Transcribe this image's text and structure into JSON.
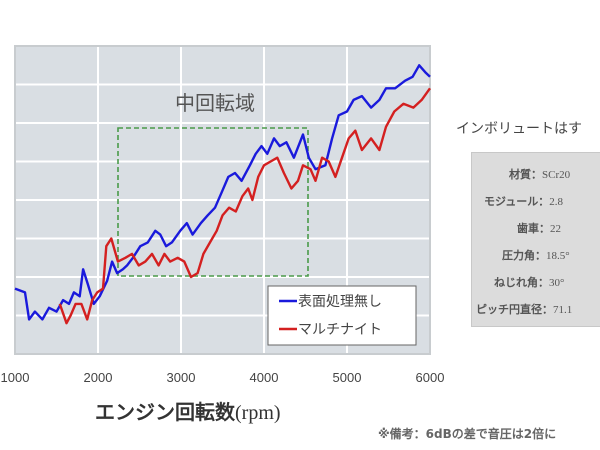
{
  "chart_data": {
    "type": "line",
    "title": "中回転域",
    "xlabel": "エンジン回転数(rpm)",
    "ylabel": "",
    "xlim": [
      1000,
      6000
    ],
    "ylim": [
      0,
      8
    ],
    "x_ticks": [
      1000,
      2000,
      3000,
      4000,
      5000,
      6000
    ],
    "y_ticks_labeled": false,
    "y_gridlines": [
      1,
      2,
      3,
      4,
      5,
      6,
      7
    ],
    "grid": true,
    "background": "#d9dee3",
    "legend_position": "lower right",
    "annotations": [
      {
        "type": "dashed-box",
        "label": "中回転域",
        "x_range": [
          2250,
          4550
        ],
        "y_range": [
          2.0,
          5.9
        ],
        "color": "#4a9a4a"
      }
    ],
    "series": [
      {
        "name": "表面処理無し",
        "color": "#1a1adc",
        "points": [
          [
            1000,
            1.7
          ],
          [
            1120,
            1.6
          ],
          [
            1170,
            0.9
          ],
          [
            1240,
            1.1
          ],
          [
            1330,
            0.9
          ],
          [
            1410,
            1.2
          ],
          [
            1500,
            1.1
          ],
          [
            1580,
            1.4
          ],
          [
            1650,
            1.3
          ],
          [
            1710,
            1.6
          ],
          [
            1780,
            1.5
          ],
          [
            1820,
            2.2
          ],
          [
            1880,
            1.8
          ],
          [
            1950,
            1.3
          ],
          [
            2020,
            1.5
          ],
          [
            2110,
            1.9
          ],
          [
            2170,
            2.4
          ],
          [
            2230,
            2.1
          ],
          [
            2300,
            2.2
          ],
          [
            2350,
            2.3
          ],
          [
            2420,
            2.5
          ],
          [
            2510,
            2.8
          ],
          [
            2600,
            2.9
          ],
          [
            2690,
            3.2
          ],
          [
            2750,
            3.1
          ],
          [
            2820,
            2.8
          ],
          [
            2890,
            2.9
          ],
          [
            2990,
            3.2
          ],
          [
            3070,
            3.4
          ],
          [
            3140,
            3.1
          ],
          [
            3240,
            3.4
          ],
          [
            3320,
            3.6
          ],
          [
            3410,
            3.8
          ],
          [
            3490,
            4.2
          ],
          [
            3570,
            4.6
          ],
          [
            3650,
            4.7
          ],
          [
            3730,
            4.5
          ],
          [
            3830,
            4.9
          ],
          [
            3900,
            5.2
          ],
          [
            3970,
            5.4
          ],
          [
            4040,
            5.2
          ],
          [
            4120,
            5.6
          ],
          [
            4190,
            5.4
          ],
          [
            4270,
            5.5
          ],
          [
            4360,
            5.1
          ],
          [
            4470,
            5.7
          ],
          [
            4540,
            5.1
          ],
          [
            4620,
            4.8
          ],
          [
            4740,
            4.9
          ],
          [
            4820,
            5.6
          ],
          [
            4900,
            6.2
          ],
          [
            5000,
            6.3
          ],
          [
            5080,
            6.6
          ],
          [
            5180,
            6.7
          ],
          [
            5290,
            6.4
          ],
          [
            5390,
            6.6
          ],
          [
            5470,
            6.9
          ],
          [
            5580,
            6.9
          ],
          [
            5700,
            7.1
          ],
          [
            5790,
            7.2
          ],
          [
            5870,
            7.5
          ],
          [
            5950,
            7.3
          ],
          [
            6000,
            7.2
          ]
        ]
      },
      {
        "name": "マルチナイト",
        "color": "#d42020",
        "points": [
          [
            1540,
            1.3
          ],
          [
            1620,
            0.8
          ],
          [
            1670,
            1.0
          ],
          [
            1730,
            1.3
          ],
          [
            1800,
            1.3
          ],
          [
            1870,
            0.9
          ],
          [
            1930,
            1.4
          ],
          [
            1990,
            1.6
          ],
          [
            2060,
            1.7
          ],
          [
            2100,
            2.8
          ],
          [
            2160,
            3.0
          ],
          [
            2240,
            2.4
          ],
          [
            2330,
            2.5
          ],
          [
            2410,
            2.6
          ],
          [
            2490,
            2.3
          ],
          [
            2570,
            2.4
          ],
          [
            2650,
            2.6
          ],
          [
            2730,
            2.3
          ],
          [
            2800,
            2.6
          ],
          [
            2870,
            2.4
          ],
          [
            2960,
            2.5
          ],
          [
            3040,
            2.4
          ],
          [
            3120,
            2.0
          ],
          [
            3200,
            2.1
          ],
          [
            3270,
            2.6
          ],
          [
            3350,
            2.9
          ],
          [
            3430,
            3.2
          ],
          [
            3500,
            3.6
          ],
          [
            3580,
            3.8
          ],
          [
            3660,
            3.7
          ],
          [
            3740,
            4.1
          ],
          [
            3810,
            4.3
          ],
          [
            3860,
            4.0
          ],
          [
            3930,
            4.6
          ],
          [
            4000,
            4.9
          ],
          [
            4080,
            5.0
          ],
          [
            4160,
            5.1
          ],
          [
            4240,
            4.7
          ],
          [
            4330,
            4.3
          ],
          [
            4410,
            4.5
          ],
          [
            4470,
            4.9
          ],
          [
            4560,
            4.8
          ],
          [
            4620,
            4.5
          ],
          [
            4700,
            5.1
          ],
          [
            4780,
            5.0
          ],
          [
            4860,
            4.6
          ],
          [
            4940,
            5.1
          ],
          [
            5020,
            5.6
          ],
          [
            5100,
            5.8
          ],
          [
            5180,
            5.3
          ],
          [
            5290,
            5.6
          ],
          [
            5390,
            5.3
          ],
          [
            5470,
            5.9
          ],
          [
            5570,
            6.3
          ],
          [
            5680,
            6.5
          ],
          [
            5800,
            6.4
          ],
          [
            5900,
            6.6
          ],
          [
            6000,
            6.9
          ]
        ]
      }
    ]
  },
  "axis": {
    "x_ticks": [
      "1000",
      "2000",
      "3000",
      "4000",
      "5000",
      "6000"
    ],
    "xlabel_main": "エンジン回転数",
    "xlabel_unit": "(rpm)"
  },
  "annotation_label": "中回転域",
  "legend": {
    "items": [
      {
        "label": "表面処理無し",
        "color": "#1a1adc"
      },
      {
        "label": "マルチナイト",
        "color": "#d42020"
      }
    ]
  },
  "side_panel": {
    "title": "インボリュートはす",
    "specs": [
      {
        "key": "材質：",
        "value": "SCr20"
      },
      {
        "key": "モジュール：",
        "value": "2.8"
      },
      {
        "key": "歯車：",
        "value": "22"
      },
      {
        "key": "圧力角：",
        "value": "18.5°"
      },
      {
        "key": "ねじれ角：",
        "value": "30°"
      },
      {
        "key": "ピッチ円直径：",
        "value": "71.1"
      }
    ]
  },
  "footnote": "※備考：6dBの差で音圧は2倍に"
}
